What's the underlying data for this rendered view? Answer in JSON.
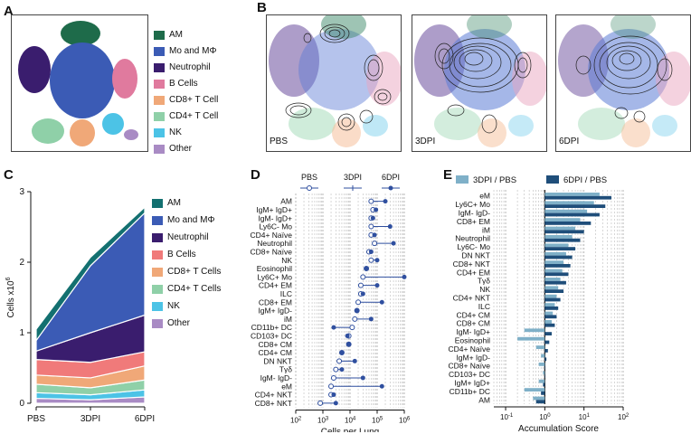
{
  "panels": {
    "a": "A",
    "b": "B",
    "c": "C",
    "d": "D",
    "e": "E"
  },
  "colors": {
    "am": "#1e6b4a",
    "mo": "#3b5bb5",
    "neut": "#3a1d6e",
    "bcell": "#e07a9e",
    "cd8t": "#f0a878",
    "cd4t": "#8fd0a8",
    "nk": "#4cc3e6",
    "other": "#a98bc4",
    "lightblue": "#7fb0c8",
    "darkblue": "#1f4e7a",
    "dotblue": "#2f4f9f"
  },
  "panel_a_legend": [
    {
      "label": "AM",
      "color": "#1e6b4a"
    },
    {
      "label": "Mo and MΦ",
      "color": "#3b5bb5"
    },
    {
      "label": "Neutrophil",
      "color": "#3a1d6e"
    },
    {
      "label": "B Cells",
      "color": "#e07a9e"
    },
    {
      "label": "CD8+ T Cell",
      "color": "#f0a878"
    },
    {
      "label": "CD4+ T Cell",
      "color": "#8fd0a8"
    },
    {
      "label": "NK",
      "color": "#4cc3e6"
    },
    {
      "label": "Other",
      "color": "#a98bc4"
    }
  ],
  "panel_b_conditions": [
    "PBS",
    "3DPI",
    "6DPI"
  ],
  "chart_data": [
    {
      "id": "C",
      "type": "area",
      "categories": [
        "PBS",
        "3DPI",
        "6DPI"
      ],
      "ylabel": "Cells x10",
      "ylabel_sup": "6",
      "ylim": [
        0,
        3
      ],
      "yticks": [
        "0",
        "1",
        "2",
        "3"
      ],
      "stacking": "stacked",
      "series": [
        {
          "name": "Other",
          "color": "#a98bc4",
          "values": [
            0.07,
            0.05,
            0.09
          ]
        },
        {
          "name": "NK",
          "color": "#4cc3e6",
          "values": [
            0.08,
            0.07,
            0.1
          ]
        },
        {
          "name": "CD4+ T Cells",
          "color": "#8fd0a8",
          "values": [
            0.12,
            0.1,
            0.14
          ]
        },
        {
          "name": "CD8+ T Cells",
          "color": "#f0a878",
          "values": [
            0.13,
            0.14,
            0.2
          ]
        },
        {
          "name": "B Cells",
          "color": "#f07a7a",
          "values": [
            0.22,
            0.22,
            0.2
          ]
        },
        {
          "name": "Neutrophil",
          "color": "#3a1d6e",
          "values": [
            0.12,
            0.42,
            0.52
          ]
        },
        {
          "name": "Mo and MΦ",
          "color": "#3b5bb5",
          "values": [
            0.15,
            0.95,
            1.45
          ]
        },
        {
          "name": "AM",
          "color": "#137070",
          "values": [
            0.16,
            0.12,
            0.08
          ]
        }
      ]
    },
    {
      "id": "D",
      "type": "scatter",
      "xlabel": "Cells per Lung",
      "xscale": "log",
      "xlim": [
        100,
        1000000
      ],
      "xticks": [
        "10^2",
        "10^3",
        "10^4",
        "10^5",
        "10^6"
      ],
      "legend": [
        {
          "label": "PBS",
          "marker": "open"
        },
        {
          "label": "3DPI",
          "marker": "dash"
        },
        {
          "label": "6DPI",
          "marker": "filled"
        }
      ],
      "rows": [
        {
          "label": "AM",
          "pbs": 60000,
          "d6": 200000
        },
        {
          "label": "IgM+ IgD+",
          "pbs": 70000,
          "d6": 90000
        },
        {
          "label": "IgM- IgD+",
          "pbs": 60000,
          "d6": 70000
        },
        {
          "label": "Ly6C- Mo",
          "pbs": 60000,
          "d6": 300000
        },
        {
          "label": "CD4+ Naïve",
          "pbs": 60000,
          "d6": 80000
        },
        {
          "label": "Neutrophil",
          "pbs": 80000,
          "d6": 400000
        },
        {
          "label": "CD8+ Naïve",
          "pbs": 50000,
          "d6": 60000
        },
        {
          "label": "NK",
          "pbs": 60000,
          "d6": 100000
        },
        {
          "label": "Eosinophil",
          "pbs": 40000,
          "d6": 40000
        },
        {
          "label": "Ly6C+ Mo",
          "pbs": 30000,
          "d6": 1000000
        },
        {
          "label": "CD4+ EM",
          "pbs": 25000,
          "d6": 100000
        },
        {
          "label": "ILC",
          "pbs": 25000,
          "d6": 30000
        },
        {
          "label": "CD8+ EM",
          "pbs": 20000,
          "d6": 150000
        },
        {
          "label": "IgM+ IgD-",
          "pbs": 18000,
          "d6": 18000
        },
        {
          "label": "iM",
          "pbs": 15000,
          "d6": 60000
        },
        {
          "label": "CD11b+ DC",
          "pbs": 12000,
          "d6": 2500
        },
        {
          "label": "CD103+ DC",
          "pbs": 9000,
          "d6": 8000
        },
        {
          "label": "CD8+ CM",
          "pbs": 9000,
          "d6": 9000
        },
        {
          "label": "CD4+ CM",
          "pbs": 5000,
          "d6": 5000
        },
        {
          "label": "DN NKT",
          "pbs": 4000,
          "d6": 15000
        },
        {
          "label": "Tγδ",
          "pbs": 3000,
          "d6": 5000
        },
        {
          "label": "IgM- IgD-",
          "pbs": 2500,
          "d6": 30000
        },
        {
          "label": "eM",
          "pbs": 2000,
          "d6": 150000
        },
        {
          "label": "CD4+ NKT",
          "pbs": 2000,
          "d6": 2500
        },
        {
          "label": "CD8+ NKT",
          "pbs": 800,
          "d6": 3000
        }
      ]
    },
    {
      "id": "E",
      "type": "bar",
      "orientation": "horizontal",
      "xlabel": "Accumulation Score",
      "xscale": "log",
      "xlim": [
        0.05,
        100
      ],
      "xticks": [
        "10^-1",
        "10^0",
        "10^1",
        "10^2"
      ],
      "series_names": [
        "3DPI / PBS",
        "6DPI / PBS"
      ],
      "categories": [
        "eM",
        "Ly6C+ Mo",
        "IgM- IgD-",
        "CD8+ EM",
        "iM",
        "Neutrophil",
        "Ly6C- Mo",
        "DN NKT",
        "CD8+ NKT",
        "CD4+ EM",
        "Tγδ",
        "NK",
        "CD4+ NKT",
        "ILC",
        "CD4+ CM",
        "CD8+ CM",
        "IgM- IgD+",
        "Eosinophil",
        "CD4+ Naïve",
        "IgM+ IgD-",
        "CD8+ Naïve",
        "CD103+ DC",
        "IgM+ IgD+",
        "CD11b+ DC",
        "AM"
      ],
      "series": [
        {
          "name": "3DPI / PBS",
          "values": [
            25,
            18,
            12,
            8,
            6,
            5,
            4,
            3.5,
            3,
            2.8,
            2.5,
            2.2,
            2,
            1.8,
            1.6,
            1.5,
            0.3,
            0.2,
            0.6,
            0.8,
            0.7,
            0.9,
            0.7,
            0.3,
            0.5
          ]
        },
        {
          "name": "6DPI / PBS",
          "values": [
            50,
            35,
            25,
            15,
            10,
            8,
            6,
            5,
            4.5,
            4,
            3.5,
            3,
            2.5,
            2.2,
            2,
            1.8,
            1.5,
            1.3,
            1.2,
            1.1,
            1.0,
            1.0,
            0.9,
            0.8,
            0.6
          ]
        }
      ]
    }
  ]
}
